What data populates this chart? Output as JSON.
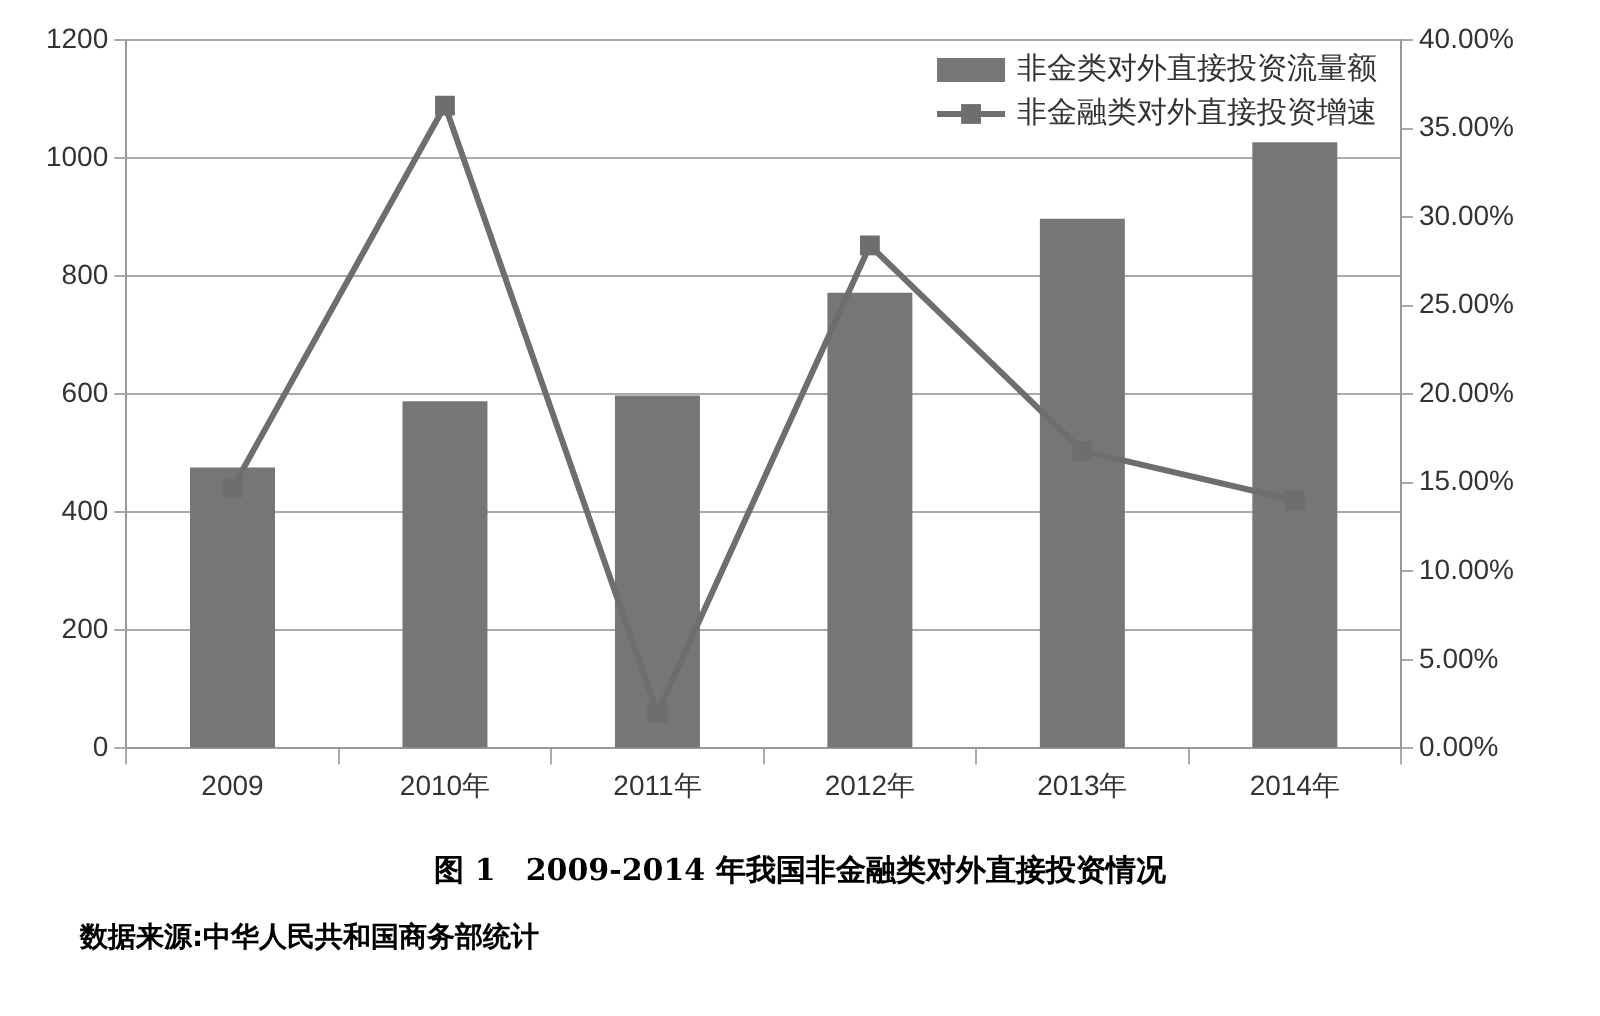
{
  "chart_data": {
    "type": "bar",
    "title": "图 1　2009-2014 年我国非金融类对外直接投资情况",
    "annotations": [
      "数据来源:中华人民共和国商务部统计"
    ],
    "categories": [
      "2009",
      "2010年",
      "2011年",
      "2012年",
      "2013年",
      "2014年"
    ],
    "series": [
      {
        "name": "非金类对外直接投资流量额",
        "color": "#767676",
        "values": [
          476,
          588,
          598,
          772,
          897,
          1027
        ]
      },
      {
        "name": "非金融类对外直接投资增速",
        "type": "line",
        "axis": "y2",
        "color": "#6e6e6e",
        "marker": "square",
        "values": [
          14.7,
          36.3,
          2.0,
          28.4,
          16.8,
          14.0
        ]
      }
    ],
    "ylim": [
      0,
      1200
    ],
    "yticks": [
      0,
      200,
      400,
      600,
      800,
      1000,
      1200
    ],
    "y2lim": [
      0,
      40
    ],
    "y2ticks": [
      {
        "value": 0,
        "label": "0.00%"
      },
      {
        "value": 5,
        "label": "5.00%"
      },
      {
        "value": 10,
        "label": "10.00%"
      },
      {
        "value": 15,
        "label": "15.00%"
      },
      {
        "value": 20,
        "label": "20.00%"
      },
      {
        "value": 25,
        "label": "25.00%"
      },
      {
        "value": 30,
        "label": "30.00%"
      },
      {
        "value": 35,
        "label": "35.00%"
      },
      {
        "value": 40,
        "label": "40.00%"
      }
    ],
    "grid": "y",
    "legend": "top right"
  }
}
